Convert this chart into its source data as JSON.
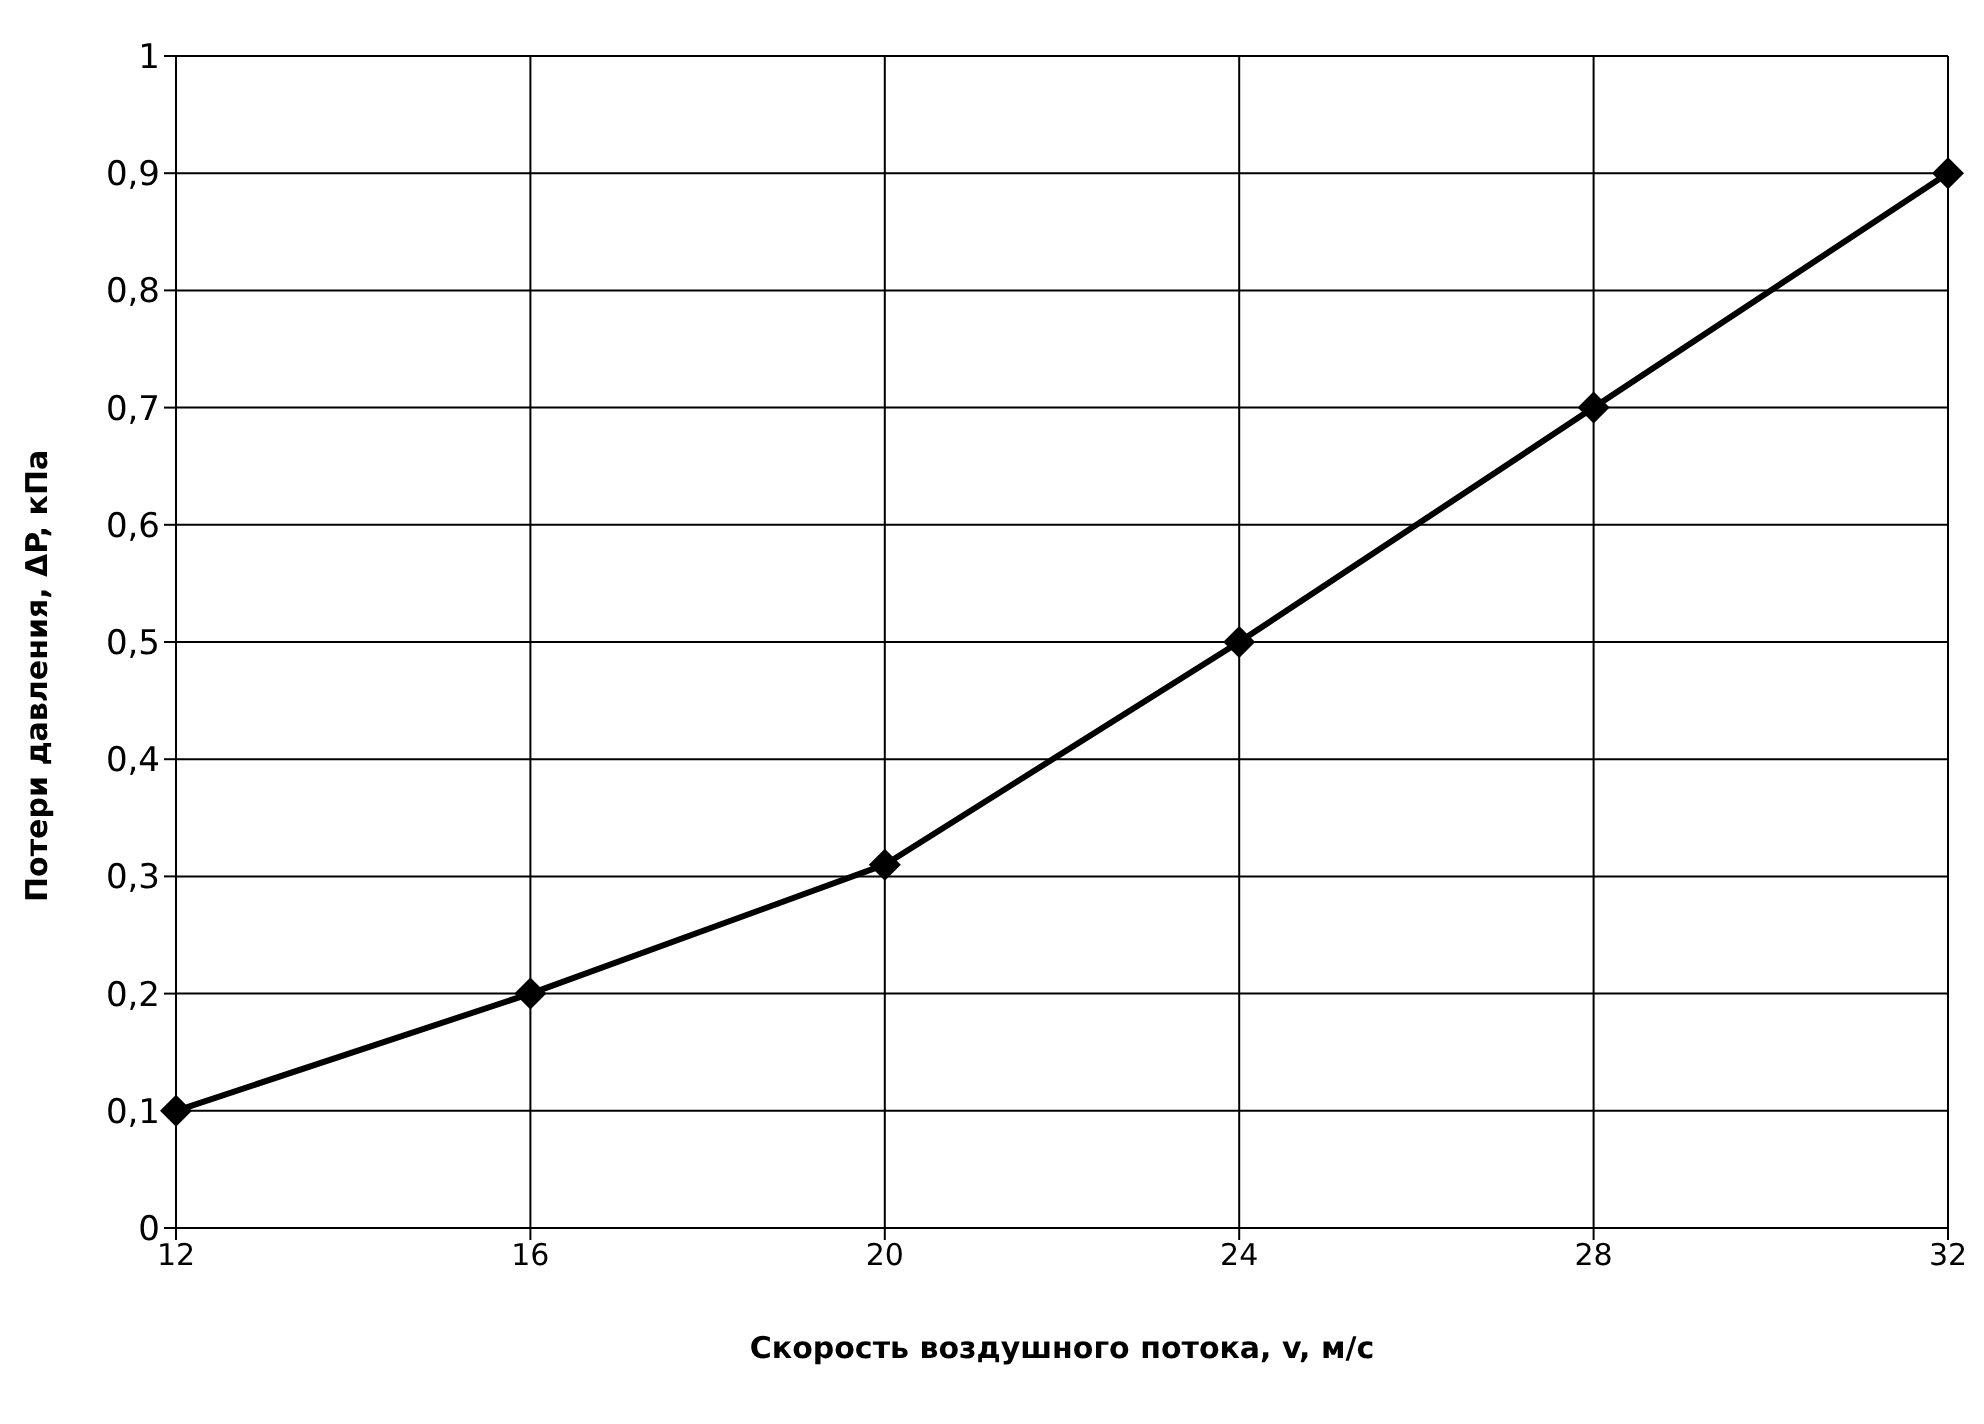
{
  "chart_data": {
    "type": "line",
    "xlabel": "Скорость воздушного потока, v, м/с",
    "ylabel": "Потери давления, ΔP, кПа",
    "categories": [
      "12",
      "16",
      "20",
      "24",
      "28",
      "32"
    ],
    "series": [
      {
        "color": "#000000",
        "values": [
          0.1,
          0.2,
          0.31,
          0.5,
          0.7,
          0.9
        ]
      }
    ],
    "ylim": [
      0,
      1
    ],
    "yticks": [
      0,
      {
        "value": 0.1,
        "label": "0,1"
      },
      {
        "value": 0.2,
        "label": "0,2"
      },
      {
        "value": 0.3,
        "label": "0,3"
      },
      {
        "value": 0.4,
        "label": "0,4"
      },
      {
        "value": 0.5,
        "label": "0,5"
      },
      {
        "value": 0.6,
        "label": "0,6"
      },
      {
        "value": 0.7,
        "label": "0,7"
      },
      {
        "value": 0.8,
        "label": "0,8"
      },
      {
        "value": 0.9,
        "label": "0,9"
      },
      1
    ],
    "grid": true,
    "marker": "diamond",
    "line_style": "solid",
    "legend": false
  }
}
